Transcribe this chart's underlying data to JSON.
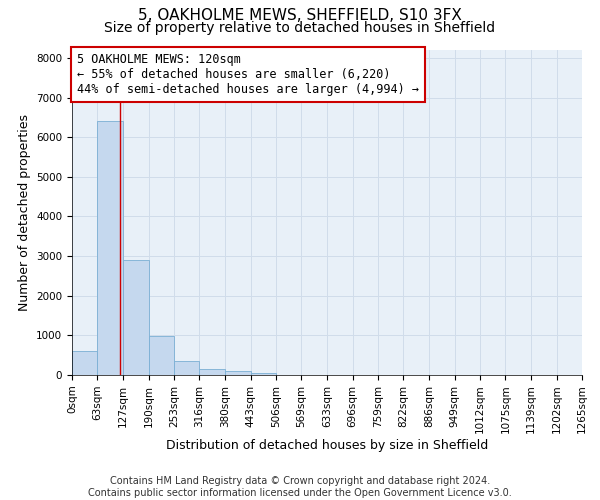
{
  "title1": "5, OAKHOLME MEWS, SHEFFIELD, S10 3FX",
  "title2": "Size of property relative to detached houses in Sheffield",
  "xlabel": "Distribution of detached houses by size in Sheffield",
  "ylabel": "Number of detached properties",
  "bin_edges": [
    0,
    63,
    127,
    190,
    253,
    316,
    380,
    443,
    506,
    569,
    633,
    696,
    759,
    822,
    886,
    949,
    1012,
    1075,
    1139,
    1202,
    1265
  ],
  "bar_heights": [
    600,
    6400,
    2900,
    980,
    350,
    160,
    90,
    60,
    10,
    5,
    3,
    2,
    1,
    1,
    0,
    0,
    0,
    0,
    0,
    0
  ],
  "bar_color": "#c5d8ee",
  "bar_edge_color": "#7aafd4",
  "property_line_x": 120,
  "property_line_color": "#cc0000",
  "annotation_text": "5 OAKHOLME MEWS: 120sqm\n← 55% of detached houses are smaller (6,220)\n44% of semi-detached houses are larger (4,994) →",
  "annotation_box_color": "#cc0000",
  "ylim": [
    0,
    8200
  ],
  "yticks": [
    0,
    1000,
    2000,
    3000,
    4000,
    5000,
    6000,
    7000,
    8000
  ],
  "grid_color": "#d0dcea",
  "background_color": "#e8f0f8",
  "footer_text": "Contains HM Land Registry data © Crown copyright and database right 2024.\nContains public sector information licensed under the Open Government Licence v3.0.",
  "title1_fontsize": 11,
  "title2_fontsize": 10,
  "xlabel_fontsize": 9,
  "ylabel_fontsize": 9,
  "tick_fontsize": 7.5,
  "annotation_fontsize": 8.5,
  "footer_fontsize": 7
}
